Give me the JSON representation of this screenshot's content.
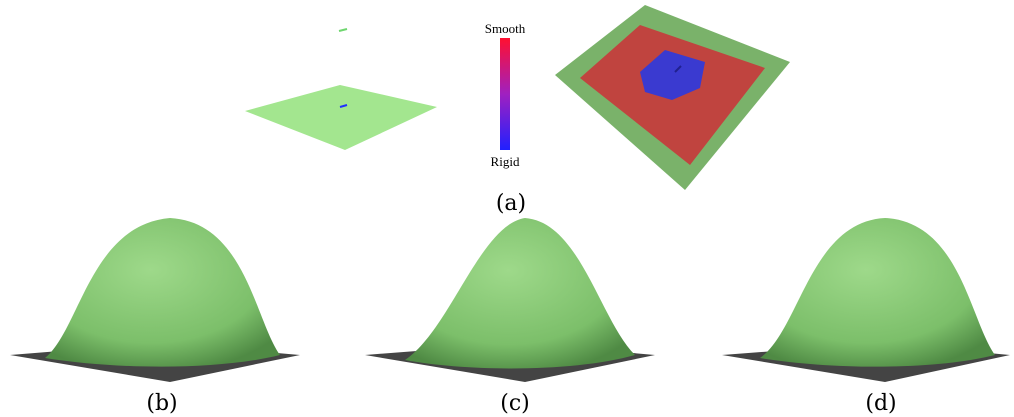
{
  "colorbar": {
    "top": "Smooth",
    "bottom": "Rigid"
  },
  "panels": [
    {
      "label": "(a)"
    },
    {
      "label": "(b)"
    },
    {
      "label": "(c)"
    },
    {
      "label": "(d)"
    }
  ]
}
